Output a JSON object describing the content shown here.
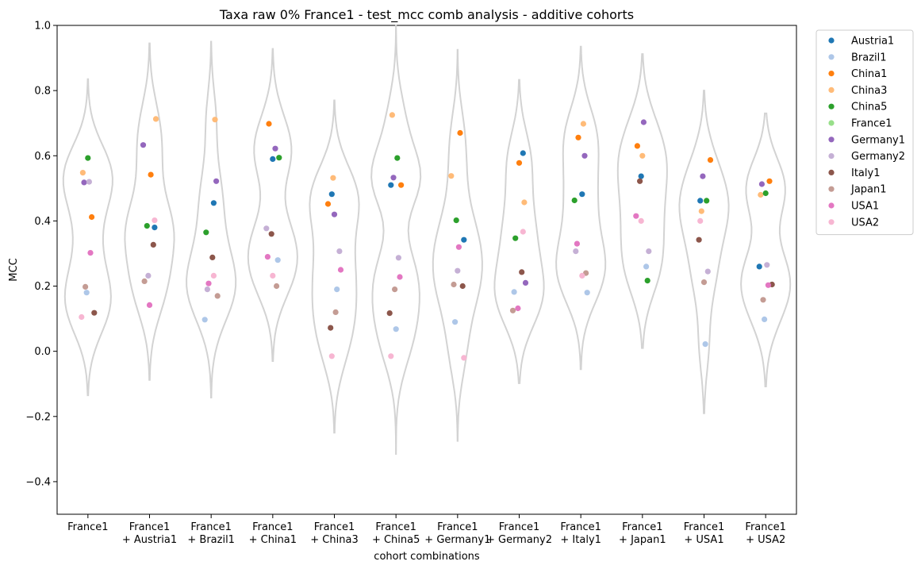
{
  "chart_data": {
    "type": "scatter",
    "subtype": "violin-strip",
    "title": "Taxa raw 0% France1 - test_mcc comb analysis - additive cohorts",
    "xlabel": "cohort combinations",
    "ylabel": "MCC",
    "ylim": [
      -0.5,
      1.0
    ],
    "yticks": [
      -0.4,
      -0.2,
      0.0,
      0.2,
      0.4,
      0.6,
      0.8,
      1.0
    ],
    "ytick_labels": [
      "−0.4",
      "−0.2",
      "0.0",
      "0.2",
      "0.4",
      "0.6",
      "0.8",
      "1.0"
    ],
    "grid": false,
    "legend_position": "outside-top-right",
    "violin_color": "#d3d3d3",
    "categories": [
      [
        "France1"
      ],
      [
        "France1",
        "+ Austria1"
      ],
      [
        "France1",
        "+ Brazil1"
      ],
      [
        "France1",
        "+ China1"
      ],
      [
        "France1",
        "+ China3"
      ],
      [
        "France1",
        "+ China5"
      ],
      [
        "France1",
        "+ Germany1"
      ],
      [
        "France1",
        "+ Germany2"
      ],
      [
        "France1",
        "+ Italy1"
      ],
      [
        "France1",
        "+ Japan1"
      ],
      [
        "France1",
        "+ USA1"
      ],
      [
        "France1",
        "+ USA2"
      ]
    ],
    "violins": [
      {
        "min": -0.135,
        "max": 0.835
      },
      {
        "min": -0.088,
        "max": 0.945
      },
      {
        "min": -0.142,
        "max": 0.95
      },
      {
        "min": -0.03,
        "max": 0.928
      },
      {
        "min": -0.25,
        "max": 0.77
      },
      {
        "min": -0.315,
        "max": 1.0
      },
      {
        "min": -0.275,
        "max": 0.925
      },
      {
        "min": -0.098,
        "max": 0.833
      },
      {
        "min": -0.055,
        "max": 0.935
      },
      {
        "min": 0.01,
        "max": 0.912
      },
      {
        "min": -0.19,
        "max": 0.8
      },
      {
        "min": -0.108,
        "max": 0.73
      }
    ],
    "series": [
      {
        "name": "Austria1",
        "color": "#1f77b4",
        "values": [
          null,
          0.38,
          0.455,
          0.59,
          0.482,
          0.51,
          0.342,
          0.608,
          0.482,
          0.537,
          0.462,
          0.26
        ]
      },
      {
        "name": "Brazil1",
        "color": "#aec7e8",
        "values": [
          0.18,
          null,
          0.097,
          0.28,
          0.19,
          0.068,
          0.09,
          0.182,
          0.18,
          0.26,
          0.022,
          0.098
        ]
      },
      {
        "name": "China1",
        "color": "#ff7f0e",
        "values": [
          0.412,
          0.542,
          null,
          0.698,
          0.452,
          0.51,
          0.67,
          0.578,
          0.656,
          0.63,
          0.587,
          0.522
        ]
      },
      {
        "name": "China3",
        "color": "#ffbb78",
        "values": [
          0.548,
          0.713,
          0.711,
          null,
          0.532,
          0.725,
          0.538,
          0.457,
          0.698,
          0.6,
          0.43,
          0.48
        ]
      },
      {
        "name": "China5",
        "color": "#2ca02c",
        "values": [
          0.593,
          0.385,
          0.365,
          0.594,
          null,
          0.593,
          0.402,
          0.347,
          0.463,
          0.217,
          0.462,
          0.485
        ]
      },
      {
        "name": "France1",
        "color": "#98df8a",
        "values": [
          null,
          null,
          null,
          null,
          null,
          null,
          null,
          null,
          null,
          null,
          null,
          null
        ]
      },
      {
        "name": "Germany1",
        "color": "#9467bd",
        "values": [
          0.518,
          0.633,
          0.522,
          0.622,
          0.42,
          0.533,
          null,
          0.21,
          0.6,
          0.703,
          0.537,
          0.513
        ]
      },
      {
        "name": "Germany2",
        "color": "#c5b0d5",
        "values": [
          0.52,
          0.232,
          0.19,
          0.377,
          0.307,
          0.287,
          0.247,
          null,
          0.307,
          0.307,
          0.245,
          0.265
        ]
      },
      {
        "name": "Italy1",
        "color": "#8c564b",
        "values": [
          0.118,
          0.327,
          0.288,
          0.36,
          0.072,
          0.117,
          0.2,
          0.243,
          null,
          0.522,
          0.342,
          0.205
        ]
      },
      {
        "name": "Japan1",
        "color": "#c49c94",
        "values": [
          0.198,
          0.215,
          0.17,
          0.2,
          0.12,
          0.19,
          0.205,
          0.125,
          0.24,
          null,
          0.212,
          0.158
        ]
      },
      {
        "name": "USA1",
        "color": "#e377c2",
        "values": [
          0.302,
          0.142,
          0.208,
          0.29,
          0.25,
          0.228,
          0.32,
          0.132,
          0.33,
          0.415,
          null,
          0.203
        ]
      },
      {
        "name": "USA2",
        "color": "#f7b6d2",
        "values": [
          0.105,
          0.402,
          0.232,
          0.232,
          -0.015,
          -0.015,
          -0.02,
          0.367,
          0.232,
          0.4,
          0.4,
          null
        ]
      }
    ]
  }
}
